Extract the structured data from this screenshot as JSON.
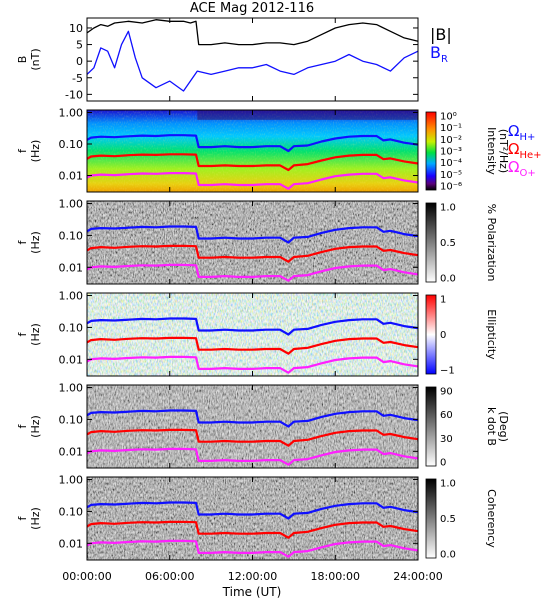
{
  "chart_data": {
    "type": "line",
    "title": "ACE Mag 2012-116",
    "xlabel": "Time (UT)",
    "x_ticks": [
      "00:00:00",
      "06:00:00",
      "12:00:00",
      "18:00:00",
      "24:00:00"
    ],
    "xlim_hours": [
      0,
      24
    ],
    "colors": {
      "black": "#000000",
      "blue": "#1010ff",
      "red": "#ff0000",
      "magenta": "#ff20ff"
    },
    "panels": [
      {
        "id": "b-field",
        "ylabel": [
          "B",
          "(nT)"
        ],
        "ylim": [
          -12,
          13
        ],
        "y_ticks": [
          "10",
          "5",
          "0",
          "-5",
          "-10"
        ],
        "y_tick_values": [
          10,
          5,
          0,
          -5,
          -10
        ],
        "legend": [
          {
            "label": "|B|",
            "color": "#000000"
          },
          {
            "label": "B",
            "sub": "R",
            "color": "#1010ff"
          }
        ],
        "series": [
          {
            "name": "|B|",
            "color": "#000000",
            "x": [
              0,
              0.5,
              1,
              1.5,
              2,
              3,
              4,
              5,
              6,
              7,
              7.5,
              7.9,
              8.1,
              9,
              10,
              11,
              12,
              13,
              14,
              15,
              16,
              17,
              18,
              19,
              20,
              21,
              22,
              23,
              24
            ],
            "y": [
              8.5,
              10,
              11,
              10.5,
              11.5,
              12,
              11.5,
              12.5,
              12,
              12,
              11.5,
              12,
              5,
              5,
              5.5,
              5,
              5,
              5.5,
              5.5,
              5,
              6,
              8,
              10,
              11,
              11.5,
              11,
              9,
              7,
              6
            ]
          },
          {
            "name": "B_R",
            "color": "#1010ff",
            "x": [
              0,
              0.5,
              1,
              1.5,
              2,
              2.5,
              3,
              3.5,
              4,
              5,
              6,
              7,
              8,
              9,
              10,
              11,
              12,
              13,
              14,
              15,
              16,
              17,
              18,
              19,
              20,
              21,
              22,
              23,
              24
            ],
            "y": [
              -4,
              -2,
              4,
              3,
              -2,
              5,
              9,
              1,
              -5,
              -8,
              -6,
              -9,
              -3,
              -4,
              -3,
              -2,
              -2,
              -1,
              -3,
              -4,
              -2,
              -1,
              0,
              2,
              0,
              -1,
              -3,
              1,
              3
            ]
          }
        ]
      },
      {
        "id": "intensity",
        "ylabel": [
          "f",
          "(Hz)"
        ],
        "y_ticks": [
          "1.00",
          "0.10",
          "0.01"
        ],
        "y_tick_values": [
          1.0,
          0.1,
          0.01
        ],
        "ylim": [
          0.003,
          1.2
        ],
        "yscale": "log",
        "colorbar": {
          "label": [
            "Intensity",
            "(nT²/Hz)"
          ],
          "ticks": [
            "10⁰",
            "10⁻¹",
            "10⁻²",
            "10⁻³",
            "10⁻⁴",
            "10⁻⁵",
            "10⁻⁶"
          ],
          "map": "rainbow"
        },
        "legend": [
          {
            "label": "Ω",
            "sub": "H+",
            "color": "#1010ff"
          },
          {
            "label": "Ω",
            "sub": "He+",
            "color": "#ff0000"
          },
          {
            "label": "Ω",
            "sub": "O+",
            "color": "#ff20ff"
          }
        ]
      },
      {
        "id": "polarization",
        "ylabel": [
          "f",
          "(Hz)"
        ],
        "y_ticks": [
          "1.00",
          "0.10",
          "0.01"
        ],
        "y_tick_values": [
          1.0,
          0.1,
          0.01
        ],
        "ylim": [
          0.003,
          1.2
        ],
        "yscale": "log",
        "colorbar": {
          "label": [
            "% Polarization"
          ],
          "ticks": [
            "1.0",
            "0.5",
            "0.0"
          ],
          "map": "gray"
        }
      },
      {
        "id": "ellipticity",
        "ylabel": [
          "f",
          "(Hz)"
        ],
        "y_ticks": [
          "1.00",
          "0.10",
          "0.01"
        ],
        "y_tick_values": [
          1.0,
          0.1,
          0.01
        ],
        "ylim": [
          0.003,
          1.2
        ],
        "yscale": "log",
        "colorbar": {
          "label": [
            "Ellipticity"
          ],
          "ticks": [
            "1",
            "0",
            "−1"
          ],
          "map": "bwr"
        }
      },
      {
        "id": "kdotb",
        "ylabel": [
          "f",
          "(Hz)"
        ],
        "y_ticks": [
          "1.00",
          "0.10",
          "0.01"
        ],
        "y_tick_values": [
          1.0,
          0.1,
          0.01
        ],
        "ylim": [
          0.003,
          1.2
        ],
        "yscale": "log",
        "colorbar": {
          "label": [
            "k dot B",
            "(Deg)"
          ],
          "ticks": [
            "90",
            "60",
            "30",
            "0"
          ],
          "map": "gray"
        }
      },
      {
        "id": "coherency",
        "ylabel": [
          "f",
          "(Hz)"
        ],
        "y_ticks": [
          "1.00",
          "0.10",
          "0.01"
        ],
        "y_tick_values": [
          1.0,
          0.1,
          0.01
        ],
        "ylim": [
          0.003,
          1.2
        ],
        "yscale": "log",
        "colorbar": {
          "label": [
            "Coherency"
          ],
          "ticks": [
            "1.0",
            "0.5",
            "0.0"
          ],
          "map": "gray"
        }
      }
    ],
    "gyro_lines": {
      "x": [
        0,
        0.3,
        1,
        2,
        3,
        4,
        5,
        6,
        7,
        7.9,
        8.1,
        9,
        10,
        11,
        12,
        13,
        14,
        14.6,
        15,
        16,
        17,
        18,
        19,
        20,
        21,
        21.5,
        22,
        23,
        24
      ],
      "series": [
        {
          "name": "Ω_H+",
          "color": "#1010ff",
          "y": [
            0.135,
            0.16,
            0.17,
            0.165,
            0.175,
            0.185,
            0.18,
            0.19,
            0.19,
            0.185,
            0.08,
            0.08,
            0.085,
            0.08,
            0.08,
            0.085,
            0.085,
            0.06,
            0.085,
            0.09,
            0.12,
            0.15,
            0.17,
            0.18,
            0.18,
            0.13,
            0.14,
            0.11,
            0.095
          ]
        },
        {
          "name": "Ω_He+",
          "color": "#ff0000",
          "y": [
            0.034,
            0.04,
            0.043,
            0.041,
            0.044,
            0.046,
            0.045,
            0.047,
            0.047,
            0.046,
            0.02,
            0.02,
            0.021,
            0.02,
            0.02,
            0.021,
            0.021,
            0.015,
            0.021,
            0.023,
            0.03,
            0.038,
            0.043,
            0.045,
            0.045,
            0.033,
            0.035,
            0.028,
            0.024
          ]
        },
        {
          "name": "Ω_O+",
          "color": "#ff20ff",
          "y": [
            0.0085,
            0.01,
            0.0107,
            0.0103,
            0.011,
            0.0116,
            0.0113,
            0.0119,
            0.0119,
            0.0116,
            0.005,
            0.005,
            0.0053,
            0.005,
            0.005,
            0.0053,
            0.0053,
            0.0038,
            0.0053,
            0.0057,
            0.0075,
            0.0095,
            0.0107,
            0.0113,
            0.0113,
            0.0082,
            0.0088,
            0.007,
            0.006
          ]
        }
      ]
    }
  }
}
